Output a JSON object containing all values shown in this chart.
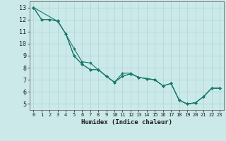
{
  "title": "",
  "xlabel": "Humidex (Indice chaleur)",
  "ylabel": "",
  "xlim": [
    -0.5,
    23.5
  ],
  "ylim": [
    4.5,
    13.5
  ],
  "xticks": [
    0,
    1,
    2,
    3,
    4,
    5,
    6,
    7,
    8,
    9,
    10,
    11,
    12,
    13,
    14,
    15,
    16,
    17,
    18,
    19,
    20,
    21,
    22,
    23
  ],
  "yticks": [
    5,
    6,
    7,
    8,
    9,
    10,
    11,
    12,
    13
  ],
  "bg_color": "#cce9e9",
  "line_color": "#1a7a6e",
  "grid_color": "#aad4d4",
  "lines": [
    {
      "x": [
        0,
        1,
        2,
        3,
        4,
        5,
        6,
        7,
        8,
        9,
        10,
        11,
        12,
        13,
        14,
        15,
        16,
        17,
        18,
        19,
        20,
        21,
        22,
        23
      ],
      "y": [
        13,
        12,
        12,
        11.85,
        10.8,
        9.0,
        8.3,
        7.85,
        7.85,
        7.3,
        6.8,
        7.3,
        7.5,
        7.2,
        7.1,
        7.0,
        6.5,
        6.7,
        5.3,
        5.0,
        5.1,
        5.6,
        6.3,
        6.3
      ]
    },
    {
      "x": [
        0,
        1,
        2,
        3,
        4,
        5,
        6,
        7,
        8,
        9,
        10,
        11,
        12,
        13,
        14,
        15,
        16,
        17,
        18,
        19,
        20,
        21,
        22,
        23
      ],
      "y": [
        13,
        12,
        12,
        11.9,
        10.8,
        9.6,
        8.5,
        8.4,
        7.85,
        7.3,
        6.8,
        7.55,
        7.55,
        7.2,
        7.1,
        7.0,
        6.5,
        6.7,
        5.3,
        5.0,
        5.1,
        5.6,
        6.3,
        6.3
      ]
    },
    {
      "x": [
        0,
        3,
        4,
        5,
        6,
        7,
        8,
        9,
        10,
        11,
        12,
        13,
        14,
        15,
        16,
        17,
        18,
        19,
        20,
        21,
        22,
        23
      ],
      "y": [
        13,
        11.85,
        10.8,
        9.0,
        8.3,
        7.85,
        7.85,
        7.3,
        6.8,
        7.3,
        7.5,
        7.2,
        7.1,
        7.0,
        6.5,
        6.7,
        5.3,
        5.0,
        5.1,
        5.6,
        6.3,
        6.3
      ]
    }
  ]
}
